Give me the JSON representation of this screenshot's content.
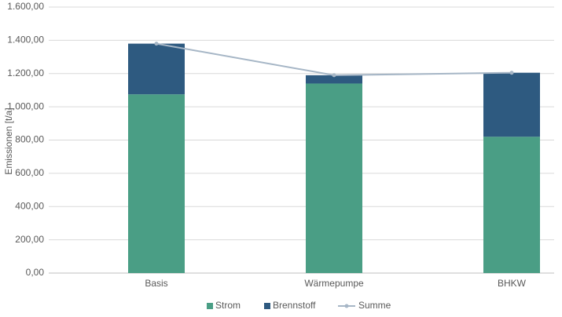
{
  "chart_data": {
    "type": "bar",
    "y_label": "Emissionen [t/a]",
    "categories": [
      "Basis",
      "Wärmepumpe",
      "BHKW"
    ],
    "series": [
      {
        "name": "Strom",
        "color": "#4a9e85",
        "values": [
          1075,
          1140,
          820
        ],
        "type": "bar"
      },
      {
        "name": "Brennstoff",
        "color": "#2e5a80",
        "values": [
          305,
          50,
          385
        ],
        "type": "bar"
      },
      {
        "name": "Summe",
        "color": "#a6b6c6",
        "values": [
          1380,
          1190,
          1205
        ],
        "type": "line"
      }
    ],
    "stacked": true,
    "ylim": [
      0,
      1600
    ],
    "yticks": [
      {
        "value": 0,
        "label": "0,00"
      },
      {
        "value": 200,
        "label": "200,00"
      },
      {
        "value": 400,
        "label": "400,00"
      },
      {
        "value": 600,
        "label": "600,00"
      },
      {
        "value": 800,
        "label": "800,00"
      },
      {
        "value": 1000,
        "label": "1.000,00"
      },
      {
        "value": 1200,
        "label": "1.200,00"
      },
      {
        "value": 1400,
        "label": "1.400,00"
      },
      {
        "value": 1600,
        "label": "1.600,00"
      }
    ],
    "grid": true,
    "legend": "bottom"
  }
}
